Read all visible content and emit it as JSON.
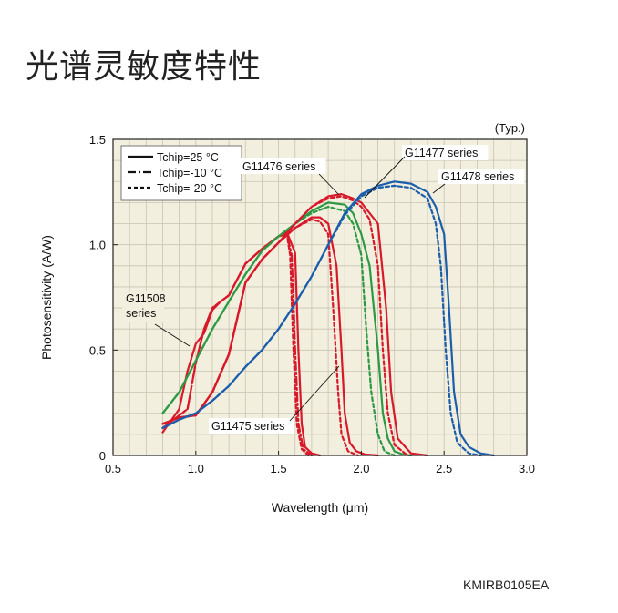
{
  "page": {
    "title": "光谱灵敏度特性",
    "figure_code": "KMIRB0105EA"
  },
  "chart_data": {
    "type": "line",
    "title": "",
    "note": "(Typ.)",
    "xlabel": "Wavelength (μm)",
    "ylabel": "Photosensitivity (A/W)",
    "xlim": [
      0.5,
      3.0
    ],
    "ylim": [
      0,
      1.5
    ],
    "xticks": [
      "0.5",
      "1.0",
      "1.5",
      "2.0",
      "2.5",
      "3.0"
    ],
    "yticks": [
      "0",
      "0.5",
      "1.0",
      "1.5"
    ],
    "grid": true,
    "legend_position": "top-left",
    "legend": [
      {
        "label": "Tchip=25 °C",
        "dash": "solid"
      },
      {
        "label": "Tchip=-10 °C",
        "dash": "dashdot"
      },
      {
        "label": "Tchip=-20 °C",
        "dash": "dashed"
      }
    ],
    "colors": {
      "G11508": "#d8192a",
      "G11475": "#d8192a",
      "G11476": "#2c9a43",
      "G11477": "#d8192a",
      "G11478": "#1b5eab",
      "background": "#f3efdf",
      "grid": "#c9c4b0"
    },
    "annotations": [
      "G11508 series",
      "G11475 series",
      "G11476 series",
      "G11477 series",
      "G11478 series"
    ],
    "series": [
      {
        "name": "G11508 series",
        "temp": "25",
        "x": [
          0.8,
          0.9,
          0.95,
          1.0,
          1.05,
          1.1,
          1.15,
          1.2,
          1.3,
          1.4,
          1.5,
          1.55,
          1.6,
          1.62,
          1.64,
          1.66,
          1.7,
          1.75
        ],
        "y": [
          0.11,
          0.22,
          0.4,
          0.53,
          0.58,
          0.69,
          0.73,
          0.76,
          0.91,
          0.98,
          1.04,
          1.06,
          0.96,
          0.5,
          0.15,
          0.04,
          0.01,
          0
        ]
      },
      {
        "name": "G11508 series",
        "temp": "-10",
        "x": [
          0.8,
          0.9,
          0.95,
          1.0,
          1.05,
          1.1,
          1.15,
          1.2,
          1.3,
          1.4,
          1.5,
          1.55,
          1.58,
          1.6,
          1.62,
          1.65,
          1.7
        ],
        "y": [
          0.13,
          0.19,
          0.22,
          0.44,
          0.6,
          0.7,
          0.73,
          0.76,
          0.91,
          0.98,
          1.04,
          1.05,
          0.95,
          0.5,
          0.15,
          0.03,
          0
        ]
      },
      {
        "name": "G11508 series",
        "temp": "-20",
        "x": [
          0.8,
          0.9,
          0.95,
          1.0,
          1.05,
          1.1,
          1.15,
          1.2,
          1.3,
          1.4,
          1.5,
          1.55,
          1.57,
          1.59,
          1.61,
          1.64,
          1.68
        ],
        "y": [
          0.13,
          0.19,
          0.22,
          0.44,
          0.6,
          0.7,
          0.73,
          0.76,
          0.91,
          0.98,
          1.04,
          1.05,
          0.95,
          0.5,
          0.15,
          0.03,
          0
        ]
      },
      {
        "name": "G11475 series",
        "temp": "25",
        "x": [
          0.8,
          0.9,
          1.0,
          1.1,
          1.2,
          1.3,
          1.4,
          1.5,
          1.6,
          1.7,
          1.75,
          1.8,
          1.85,
          1.88,
          1.9,
          1.93,
          1.97,
          2.02,
          2.1
        ],
        "y": [
          0.15,
          0.18,
          0.19,
          0.3,
          0.48,
          0.82,
          0.93,
          1.01,
          1.08,
          1.13,
          1.13,
          1.1,
          0.9,
          0.5,
          0.2,
          0.06,
          0.02,
          0.005,
          0
        ]
      },
      {
        "name": "G11475 series",
        "temp": "-20",
        "x": [
          0.8,
          0.9,
          1.0,
          1.1,
          1.2,
          1.3,
          1.4,
          1.5,
          1.6,
          1.7,
          1.75,
          1.8,
          1.83,
          1.86,
          1.88,
          1.92,
          1.98
        ],
        "y": [
          0.15,
          0.18,
          0.19,
          0.3,
          0.48,
          0.82,
          0.93,
          1.01,
          1.08,
          1.12,
          1.11,
          1.05,
          0.7,
          0.3,
          0.1,
          0.02,
          0
        ]
      },
      {
        "name": "G11476 series",
        "temp": "25",
        "x": [
          0.8,
          0.9,
          1.0,
          1.1,
          1.2,
          1.3,
          1.4,
          1.5,
          1.6,
          1.7,
          1.8,
          1.9,
          1.95,
          2.0,
          2.05,
          2.1,
          2.13,
          2.16,
          2.2,
          2.25,
          2.3
        ],
        "y": [
          0.2,
          0.3,
          0.45,
          0.6,
          0.73,
          0.86,
          0.97,
          1.04,
          1.1,
          1.16,
          1.2,
          1.19,
          1.15,
          1.05,
          0.9,
          0.5,
          0.2,
          0.08,
          0.02,
          0.005,
          0
        ]
      },
      {
        "name": "G11476 series",
        "temp": "-20",
        "x": [
          0.8,
          0.9,
          1.0,
          1.1,
          1.2,
          1.3,
          1.4,
          1.5,
          1.6,
          1.7,
          1.8,
          1.9,
          1.95,
          2.0,
          2.03,
          2.06,
          2.1,
          2.14,
          2.2
        ],
        "y": [
          0.2,
          0.3,
          0.45,
          0.6,
          0.73,
          0.86,
          0.97,
          1.04,
          1.1,
          1.15,
          1.18,
          1.16,
          1.1,
          0.95,
          0.6,
          0.3,
          0.1,
          0.02,
          0
        ]
      },
      {
        "name": "G11477 series",
        "temp": "25",
        "x": [
          0.8,
          0.9,
          1.0,
          1.1,
          1.2,
          1.3,
          1.4,
          1.5,
          1.6,
          1.7,
          1.8,
          1.88,
          1.95,
          2.0,
          2.05,
          2.1,
          2.15,
          2.18,
          2.22,
          2.3,
          2.4
        ],
        "y": [
          0.15,
          0.18,
          0.19,
          0.3,
          0.48,
          0.82,
          0.93,
          1.01,
          1.1,
          1.18,
          1.23,
          1.24,
          1.22,
          1.2,
          1.15,
          1.1,
          0.7,
          0.3,
          0.08,
          0.01,
          0
        ]
      },
      {
        "name": "G11477 series",
        "temp": "-20",
        "x": [
          0.8,
          0.9,
          1.0,
          1.1,
          1.2,
          1.3,
          1.4,
          1.5,
          1.6,
          1.7,
          1.8,
          1.88,
          1.95,
          2.0,
          2.05,
          2.1,
          2.13,
          2.16,
          2.2,
          2.28
        ],
        "y": [
          0.15,
          0.18,
          0.19,
          0.3,
          0.48,
          0.82,
          0.93,
          1.01,
          1.1,
          1.18,
          1.22,
          1.23,
          1.21,
          1.18,
          1.12,
          0.9,
          0.5,
          0.2,
          0.05,
          0
        ]
      },
      {
        "name": "G11478 series",
        "temp": "25",
        "x": [
          0.8,
          0.9,
          1.0,
          1.1,
          1.2,
          1.3,
          1.4,
          1.5,
          1.6,
          1.7,
          1.8,
          1.9,
          2.0,
          2.1,
          2.2,
          2.3,
          2.4,
          2.45,
          2.5,
          2.53,
          2.56,
          2.6,
          2.65,
          2.72,
          2.8
        ],
        "y": [
          0.13,
          0.17,
          0.2,
          0.26,
          0.33,
          0.42,
          0.5,
          0.6,
          0.72,
          0.85,
          1.0,
          1.15,
          1.24,
          1.28,
          1.3,
          1.29,
          1.25,
          1.18,
          1.05,
          0.7,
          0.3,
          0.1,
          0.04,
          0.01,
          0
        ]
      },
      {
        "name": "G11478 series",
        "temp": "-20",
        "x": [
          0.8,
          0.9,
          1.0,
          1.1,
          1.2,
          1.3,
          1.4,
          1.5,
          1.6,
          1.7,
          1.8,
          1.9,
          2.0,
          2.1,
          2.2,
          2.3,
          2.4,
          2.45,
          2.48,
          2.51,
          2.54,
          2.58,
          2.65,
          2.72
        ],
        "y": [
          0.13,
          0.17,
          0.2,
          0.26,
          0.33,
          0.42,
          0.5,
          0.6,
          0.72,
          0.85,
          1.0,
          1.14,
          1.23,
          1.27,
          1.28,
          1.27,
          1.22,
          1.1,
          0.9,
          0.5,
          0.2,
          0.06,
          0.01,
          0
        ]
      }
    ]
  }
}
